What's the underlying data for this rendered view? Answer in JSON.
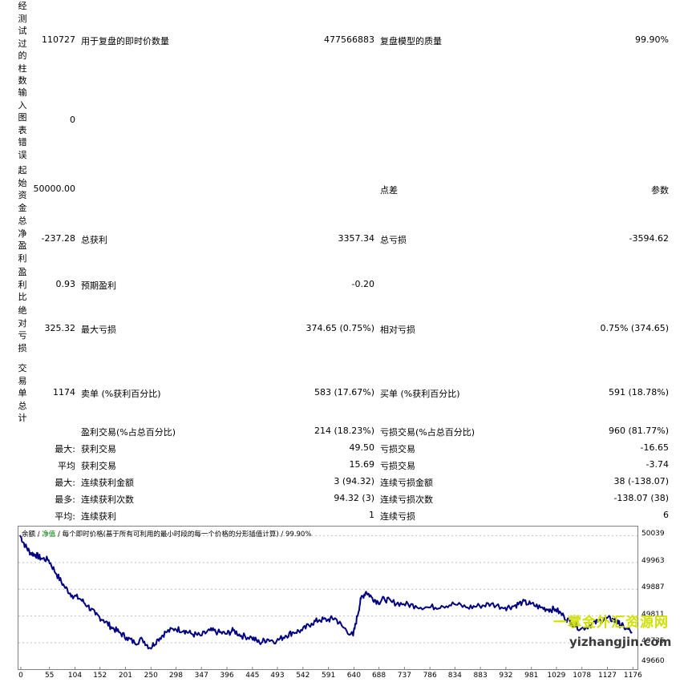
{
  "report": {
    "bars": {
      "label": "经测试过的柱数",
      "value": "110727",
      "ticks_label": "用于复盘的即时价数量",
      "ticks_value": "477566883",
      "quality_label": "复盘模型的质量",
      "quality_value": "99.90%"
    },
    "errors": {
      "label": "输入图表错误",
      "value": "0"
    },
    "deposit": {
      "label": "起始资金",
      "value": "50000.00",
      "spread_label": "点差",
      "params_label": "参数"
    },
    "net": {
      "label": "总净盈利",
      "value": "-237.28",
      "gross_profit_label": "总获利",
      "gross_profit_value": "3357.34",
      "gross_loss_label": "总亏损",
      "gross_loss_value": "-3594.62"
    },
    "pf": {
      "label": "盈利比",
      "value": "0.93",
      "expected_label": "预期盈利",
      "expected_value": "-0.20"
    },
    "dd": {
      "label": "绝对亏损",
      "value": "325.32",
      "max_label": "最大亏损",
      "max_value": "374.65 (0.75%)",
      "rel_label": "相对亏损",
      "rel_value": "0.75% (374.65)"
    },
    "trades": {
      "label": "交易单总计",
      "value": "1174",
      "short_label": "卖单 (%获利百分比)",
      "short_value": "583 (17.67%)",
      "long_label": "买单 (%获利百分比)",
      "long_value": "591 (18.78%)"
    },
    "profit_trades": {
      "label": "盈利交易(%占总百分比)",
      "value": "214 (18.23%)",
      "loss_label": "亏损交易(%占总百分比)",
      "loss_value": "960 (81.77%)"
    },
    "largest": {
      "prefix": "最大:",
      "win_label": "获利交易",
      "win_value": "49.50",
      "loss_label": "亏损交易",
      "loss_value": "-16.65"
    },
    "average": {
      "prefix": "平均",
      "win_label": "获利交易",
      "win_value": "15.69",
      "loss_label": "亏损交易",
      "loss_value": "-3.74"
    },
    "max_consec": {
      "prefix": "最大:",
      "win_label": "连续获利金额",
      "win_value": "3 (94.32)",
      "loss_label": "连续亏损金额",
      "loss_value": "38 (-138.07)"
    },
    "max_consec2": {
      "prefix": "最多:",
      "win_label": "连续获利次数",
      "win_value": "94.32 (3)",
      "loss_label": "连续亏损次数",
      "loss_value": "-138.07 (38)"
    },
    "avg_consec": {
      "prefix": "平均:",
      "win_label": "连续获利",
      "win_value": "1",
      "loss_label": "连续亏损",
      "loss_value": "6"
    }
  },
  "chart_header": {
    "balance": "余额",
    "sep1": " / ",
    "equity": "净值",
    "rest": " / 每个即时价格(基于所有可利用的最小时段的每一个价格的分形插值计算) / 99.90%"
  },
  "chart_data": {
    "type": "line",
    "x_ticks": [
      "0",
      "55",
      "104",
      "152",
      "201",
      "250",
      "298",
      "347",
      "396",
      "445",
      "493",
      "542",
      "591",
      "640",
      "688",
      "737",
      "786",
      "834",
      "883",
      "932",
      "981",
      "1029",
      "1078",
      "1127",
      "1176"
    ],
    "y_ticks": [
      "50039",
      "49963",
      "49887",
      "49811",
      "49735",
      "49660"
    ],
    "ylim": [
      49660,
      50065
    ],
    "xlim": [
      0,
      1174
    ],
    "line_color": "#000080",
    "series": [
      {
        "x": [
          0,
          10,
          20,
          30,
          40,
          55,
          70,
          85,
          100,
          115,
          130,
          145,
          160,
          175,
          190,
          205,
          220,
          235,
          250,
          265,
          280,
          298,
          315,
          330,
          347,
          365,
          380,
          396,
          410,
          425,
          445,
          460,
          475,
          493,
          510,
          525,
          542,
          560,
          575,
          591,
          605,
          620,
          640,
          648,
          655,
          665,
          675,
          688,
          700,
          715,
          737,
          760,
          786,
          810,
          834,
          860,
          883,
          905,
          932,
          950,
          965,
          981,
          1000,
          1015,
          1029,
          1045,
          1060,
          1078,
          1095,
          1110,
          1127,
          1140,
          1150,
          1160,
          1176
        ],
        "y": [
          50040,
          50010,
          49990,
          49985,
          49975,
          49970,
          49930,
          49895,
          49870,
          49860,
          49840,
          49815,
          49800,
          49780,
          49765,
          49750,
          49735,
          49745,
          49720,
          49745,
          49765,
          49775,
          49770,
          49760,
          49755,
          49770,
          49765,
          49760,
          49770,
          49755,
          49750,
          49735,
          49745,
          49740,
          49755,
          49765,
          49770,
          49790,
          49800,
          49800,
          49805,
          49780,
          49755,
          49810,
          49860,
          49880,
          49865,
          49850,
          49860,
          49850,
          49845,
          49840,
          49835,
          49840,
          49845,
          49835,
          49840,
          49845,
          49835,
          49840,
          49850,
          49845,
          49835,
          49830,
          49830,
          49810,
          49790,
          49775,
          49785,
          49795,
          49805,
          49800,
          49790,
          49780,
          49765
        ]
      }
    ]
  },
  "watermark": {
    "top": "一掌金外汇资源网",
    "bottom": "yizhangjin.com"
  }
}
